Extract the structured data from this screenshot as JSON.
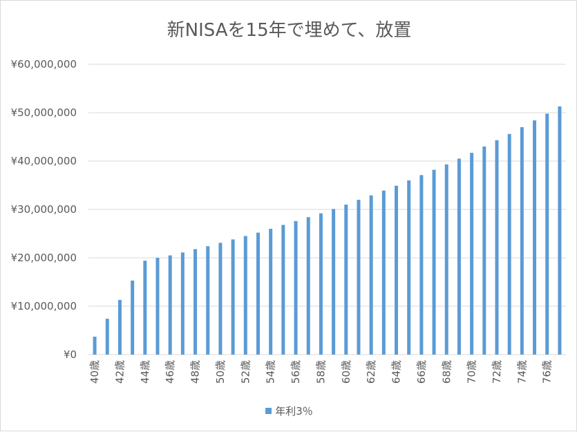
{
  "chart_data": {
    "type": "bar",
    "title": "新NISAを15年で埋めて、放置",
    "xlabel": "",
    "ylabel": "",
    "ylim": [
      0,
      60000000
    ],
    "yticks": [
      0,
      10000000,
      20000000,
      30000000,
      40000000,
      50000000,
      60000000
    ],
    "ytick_labels": [
      "¥0",
      "¥10,000,000",
      "¥20,000,000",
      "¥30,000,000",
      "¥40,000,000",
      "¥50,000,000",
      "¥60,000,000"
    ],
    "grid": true,
    "legend_position": "bottom",
    "categories": [
      "40歳",
      "41歳",
      "42歳",
      "43歳",
      "44歳",
      "45歳",
      "46歳",
      "47歳",
      "48歳",
      "49歳",
      "50歳",
      "51歳",
      "52歳",
      "53歳",
      "54歳",
      "55歳",
      "56歳",
      "57歳",
      "58歳",
      "59歳",
      "60歳",
      "61歳",
      "62歳",
      "63歳",
      "64歳",
      "65歳",
      "66歳",
      "67歳",
      "68歳",
      "69歳",
      "70歳",
      "71歳",
      "72歳",
      "73歳",
      "74歳",
      "75歳",
      "76歳",
      "77歳"
    ],
    "tick_label_categories": [
      "40歳",
      "42歳",
      "44歳",
      "46歳",
      "48歳",
      "50歳",
      "52歳",
      "54歳",
      "56歳",
      "58歳",
      "60歳",
      "62歳",
      "64歳",
      "66歳",
      "68歳",
      "70歳",
      "72歳",
      "74歳",
      "76歳"
    ],
    "series": [
      {
        "name": "年利3％",
        "color": "#5b9bd5",
        "values": [
          3700000,
          7400000,
          11300000,
          15300000,
          19400000,
          20000000,
          20500000,
          21100000,
          21800000,
          22400000,
          23100000,
          23800000,
          24500000,
          25200000,
          26000000,
          26800000,
          27600000,
          28400000,
          29200000,
          30100000,
          31000000,
          32000000,
          32900000,
          33900000,
          34900000,
          36000000,
          37100000,
          38200000,
          39300000,
          40500000,
          41700000,
          43000000,
          44300000,
          45600000,
          47000000,
          48400000,
          49800000,
          51300000
        ]
      }
    ]
  }
}
